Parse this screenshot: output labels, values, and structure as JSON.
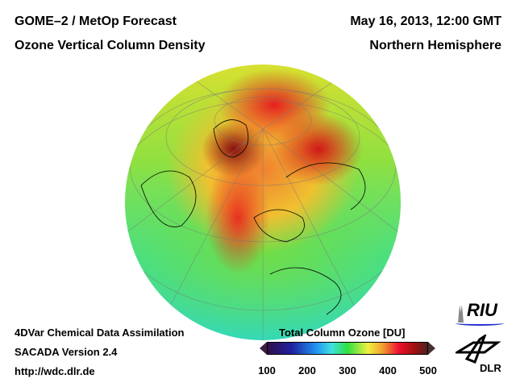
{
  "header": {
    "title_left_1": "GOME–2 / MetOp Forecast",
    "title_left_2": "Ozone Vertical Column Density",
    "title_right_1": "May 16, 2013, 12:00 GMT",
    "title_right_2": "Northern Hemisphere"
  },
  "footer": {
    "line1": "4DVar Chemical Data Assimilation",
    "line2": "SACADA Version 2.4",
    "line3": "http://wdc.dlr.de"
  },
  "colorbar": {
    "title": "Total Column Ozone [DU]",
    "ticks": [
      "100",
      "200",
      "300",
      "400",
      "500"
    ],
    "range": [
      100,
      500
    ]
  },
  "logos": {
    "riu": "RIU",
    "dlr": "DLR"
  }
}
